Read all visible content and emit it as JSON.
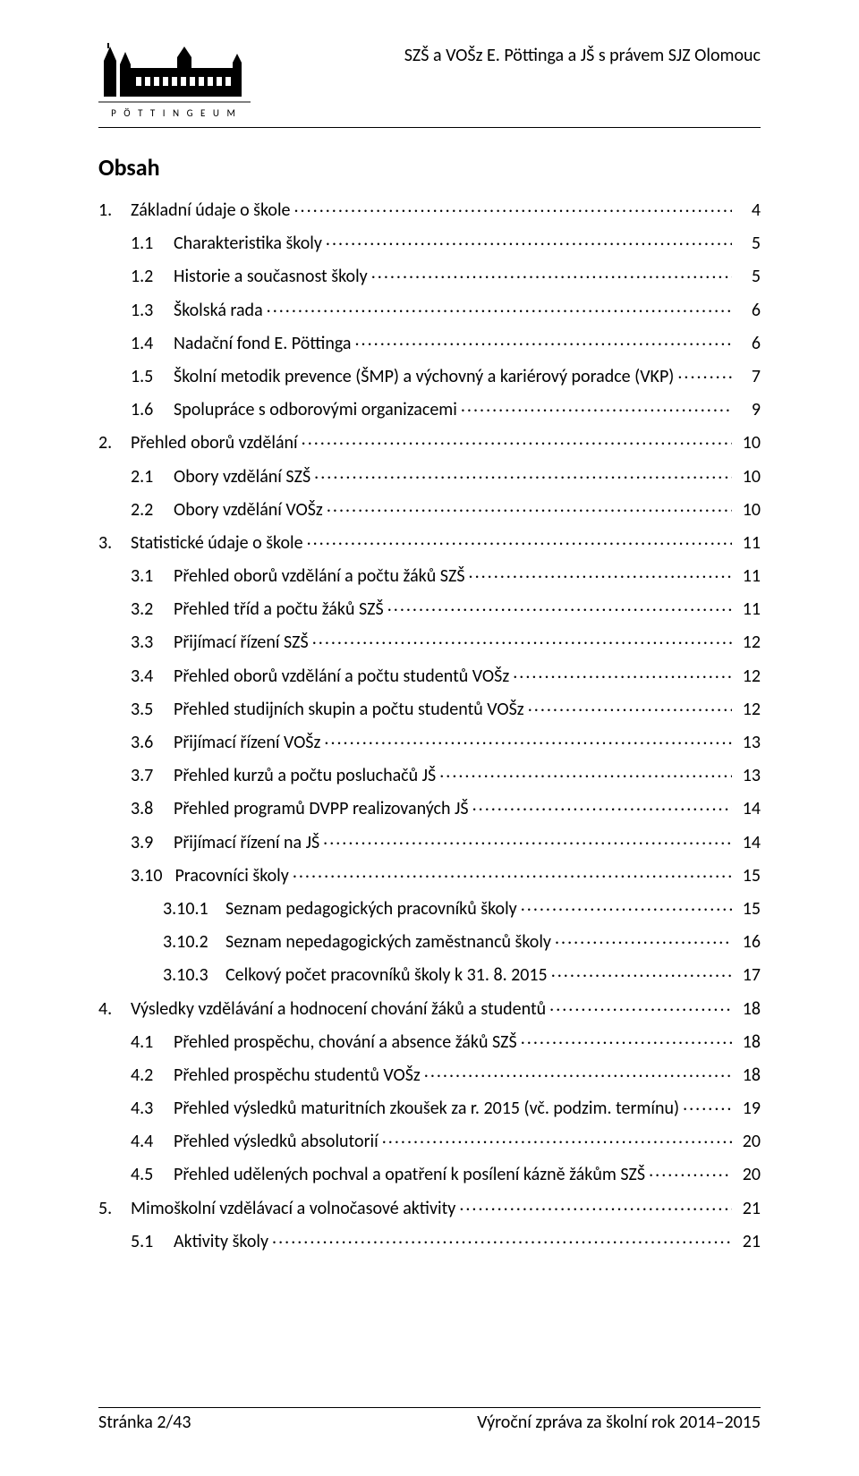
{
  "header": {
    "school_name": "SZŠ a VOŠz E. Pöttinga a JŠ s právem SJZ Olomouc",
    "logo_caption": "P Ö T T I N G E U M"
  },
  "title": "Obsah",
  "toc": [
    {
      "level": 0,
      "num": "1.",
      "label": "Základní údaje o škole",
      "page": "4"
    },
    {
      "level": 1,
      "num": "1.1",
      "label": "Charakteristika školy",
      "page": "5"
    },
    {
      "level": 1,
      "num": "1.2",
      "label": "Historie a současnost školy",
      "page": "5"
    },
    {
      "level": 1,
      "num": "1.3",
      "label": "Školská rada",
      "page": "6"
    },
    {
      "level": 1,
      "num": "1.4",
      "label": "Nadační fond E. Pöttinga",
      "page": "6"
    },
    {
      "level": 1,
      "num": "1.5",
      "label": "Školní metodik prevence (ŠMP) a výchovný a kariérový poradce (VKP)",
      "page": "7"
    },
    {
      "level": 1,
      "num": "1.6",
      "label": "Spolupráce s odborovými organizacemi",
      "page": "9"
    },
    {
      "level": 0,
      "num": "2.",
      "label": "Přehled oborů vzdělání",
      "page": "10"
    },
    {
      "level": 1,
      "num": "2.1",
      "label": "Obory vzdělání SZŠ",
      "page": "10"
    },
    {
      "level": 1,
      "num": "2.2",
      "label": "Obory vzdělání VOŠz",
      "page": "10"
    },
    {
      "level": 0,
      "num": "3.",
      "label": "Statistické údaje o škole",
      "page": "11"
    },
    {
      "level": 1,
      "num": "3.1",
      "label": "Přehled oborů vzdělání a počtu žáků SZŠ",
      "page": "11"
    },
    {
      "level": 1,
      "num": "3.2",
      "label": "Přehled tříd a počtu žáků SZŠ",
      "page": "11"
    },
    {
      "level": 1,
      "num": "3.3",
      "label": "Přijímací řízení SZŠ",
      "page": "12"
    },
    {
      "level": 1,
      "num": "3.4",
      "label": "Přehled oborů vzdělání a počtu studentů VOŠz",
      "page": "12"
    },
    {
      "level": 1,
      "num": "3.5",
      "label": "Přehled studijních skupin a počtu studentů VOŠz",
      "page": "12"
    },
    {
      "level": 1,
      "num": "3.6",
      "label": "Přijímací řízení VOŠz",
      "page": "13"
    },
    {
      "level": 1,
      "num": "3.7",
      "label": "Přehled kurzů a počtu posluchačů JŠ",
      "page": "13"
    },
    {
      "level": 1,
      "num": "3.8",
      "label": "Přehled programů DVPP realizovaných JŠ",
      "page": "14"
    },
    {
      "level": 1,
      "num": "3.9",
      "label": "Přijímací řízení na JŠ",
      "page": "14"
    },
    {
      "level": 1,
      "num": "3.10",
      "label": "Pracovníci školy",
      "page": "15"
    },
    {
      "level": 2,
      "num": "3.10.1",
      "label": "Seznam pedagogických pracovníků školy",
      "page": "15"
    },
    {
      "level": 2,
      "num": "3.10.2",
      "label": "Seznam nepedagogických zaměstnanců školy",
      "page": "16"
    },
    {
      "level": 2,
      "num": "3.10.3",
      "label": "Celkový počet pracovníků školy k 31. 8. 2015",
      "page": "17"
    },
    {
      "level": 0,
      "num": "4.",
      "label": "Výsledky vzdělávání a hodnocení chování žáků a studentů",
      "page": "18"
    },
    {
      "level": 1,
      "num": "4.1",
      "label": "Přehled prospěchu, chování a absence žáků SZŠ",
      "page": "18"
    },
    {
      "level": 1,
      "num": "4.2",
      "label": "Přehled prospěchu studentů VOŠz",
      "page": "18"
    },
    {
      "level": 1,
      "num": "4.3",
      "label": "Přehled výsledků maturitních zkoušek za r. 2015 (vč. podzim. termínu)",
      "page": "19"
    },
    {
      "level": 1,
      "num": "4.4",
      "label": "Přehled výsledků absolutorií",
      "page": "20"
    },
    {
      "level": 1,
      "num": "4.5",
      "label": "Přehled udělených pochval a opatření k posílení kázně žákům SZŠ",
      "page": "20"
    },
    {
      "level": 0,
      "num": "5.",
      "label": "Mimoškolní vzdělávací a volnočasové aktivity",
      "page": "21"
    },
    {
      "level": 1,
      "num": "5.1",
      "label": "Aktivity školy",
      "page": "21"
    }
  ],
  "footer": {
    "left": "Stránka 2/43",
    "right": "Výroční zpráva za školní rok 2014–2015"
  }
}
